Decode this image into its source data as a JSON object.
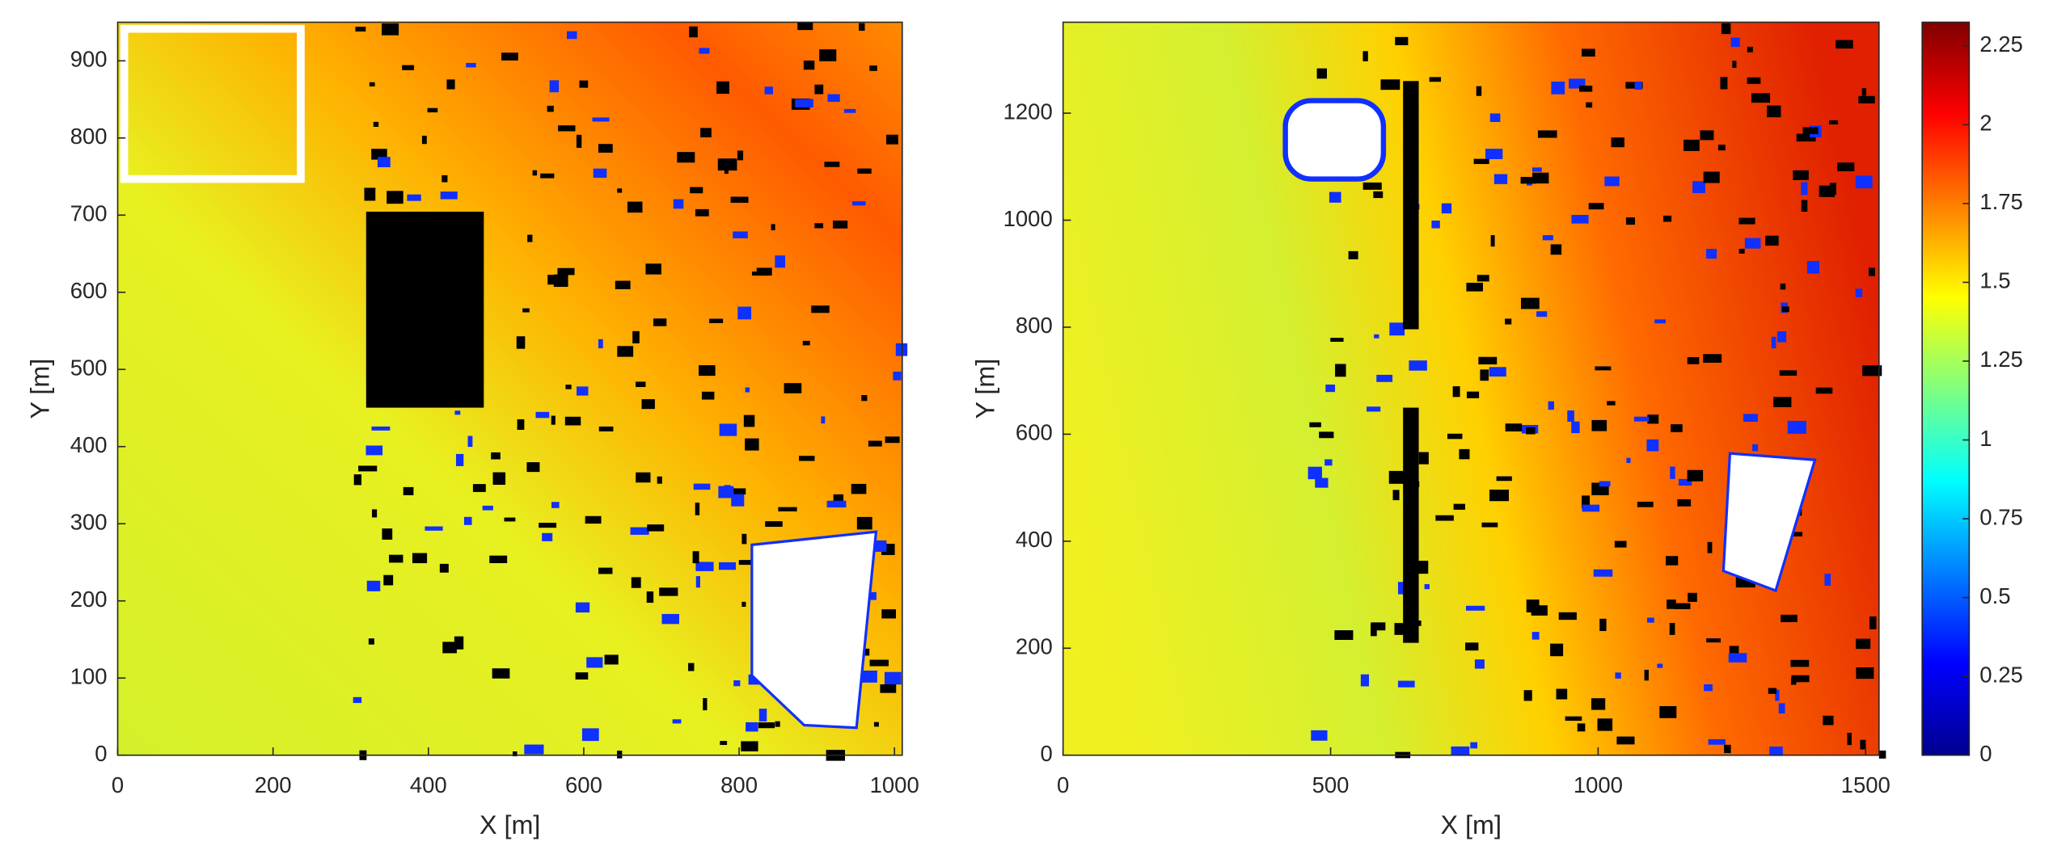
{
  "chart_data": [
    {
      "type": "heatmap",
      "xlabel": "X [m]",
      "ylabel": "Y [m]",
      "xlim": [
        0,
        1010
      ],
      "ylim": [
        0,
        950
      ],
      "xticks": [
        0,
        200,
        400,
        600,
        800,
        1000
      ],
      "yticks": [
        0,
        100,
        200,
        300,
        400,
        500,
        600,
        700,
        800,
        900
      ],
      "colormap": "jet"
    },
    {
      "type": "heatmap",
      "xlabel": "X [m]",
      "ylabel": "Y [m]",
      "xlim": [
        0,
        1525
      ],
      "ylim": [
        0,
        1370
      ],
      "xticks": [
        0,
        500,
        1000,
        1500
      ],
      "yticks": [
        0,
        200,
        400,
        600,
        800,
        1000,
        1200
      ],
      "colormap": "jet",
      "clim": [
        0,
        2.325
      ],
      "cticks": [
        0,
        0.25,
        0.5,
        0.75,
        1,
        1.25,
        1.5,
        1.75,
        2,
        2.25
      ]
    }
  ]
}
